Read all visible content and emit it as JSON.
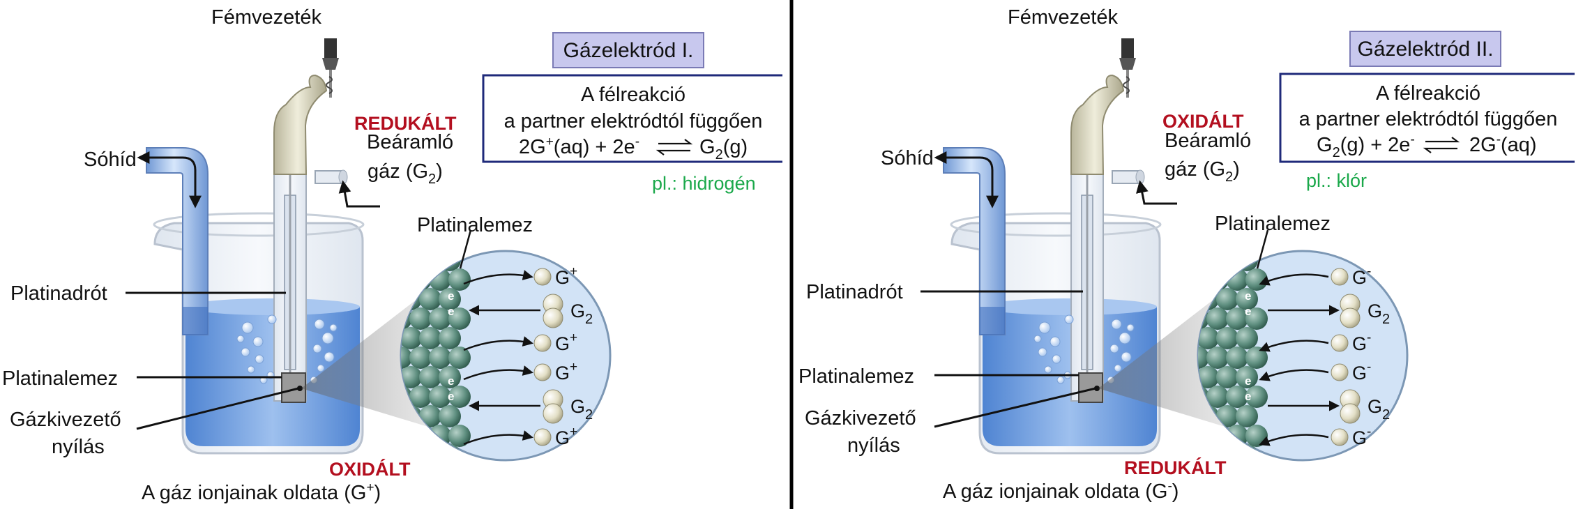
{
  "panel_left": {
    "title": "Gázelektród I.",
    "box_line1": "A félreakció",
    "box_line2": "a partner elektródtól függően",
    "eq_left": "2G",
    "eq_left_sup": "+",
    "eq_left_rest": "(aq) + 2e",
    "eq_e_sup": "-",
    "eq_right": "G",
    "eq_right_sub": "2",
    "eq_right_rest": "(g)",
    "example": "pl.: hidrogén",
    "wire_label": "Fémvezeték",
    "salt_bridge": "Sóhíd",
    "gas_state": "REDUKÁLT",
    "gas_label1": "Beáramló",
    "gas_label2": "gáz (G",
    "gas_label2_sub": "2",
    "gas_label2_end": ")",
    "pt_wire": "Platinadrót",
    "pt_plate": "Platinalemez",
    "outlet1": "Gázkivezető",
    "outlet2": "nyílás",
    "solution_state": "OXIDÁLT",
    "solution": "A gáz ionjainak oldata (G",
    "solution_sup": "+",
    "solution_end": ")",
    "zoom_label": "Platinalemez",
    "ion": "G",
    "ion_sign": "+",
    "molecule": "G",
    "molecule_sub": "2",
    "electron": "e"
  },
  "panel_right": {
    "title": "Gázelektród II.",
    "box_line1": "A félreakció",
    "box_line2": "a partner elektródtól függően",
    "eq_left": "G",
    "eq_left_sub": "2",
    "eq_left_rest": "(g) + 2e",
    "eq_e_sup": "-",
    "eq_right": "2G",
    "eq_right_sup": "-",
    "eq_right_rest": "(aq)",
    "example": "pl.: klór",
    "wire_label": "Fémvezeték",
    "salt_bridge": "Sóhíd",
    "gas_state": "OXIDÁLT",
    "gas_label1": "Beáramló",
    "gas_label2": "gáz (G",
    "gas_label2_sub": "2",
    "gas_label2_end": ")",
    "pt_wire": "Platinadrót",
    "pt_plate": "Platinalemez",
    "outlet1": "Gázkivezető",
    "outlet2": "nyílás",
    "solution_state": "REDUKÁLT",
    "solution": "A gáz ionjainak oldata (G",
    "solution_sup": "-",
    "solution_end": ")",
    "zoom_label": "Platinalemez",
    "ion": "G",
    "ion_sign": "-",
    "molecule": "G",
    "molecule_sub": "2",
    "electron": "e"
  },
  "colors": {
    "solution_blue": "#5b8fd6",
    "title_box_fill": "#c8c8ee",
    "frame_navy": "#1f2a7a",
    "oxid_red": "#b30f1f",
    "example_green": "#1aa84a",
    "platinum_dots": "#4e7f6e"
  }
}
